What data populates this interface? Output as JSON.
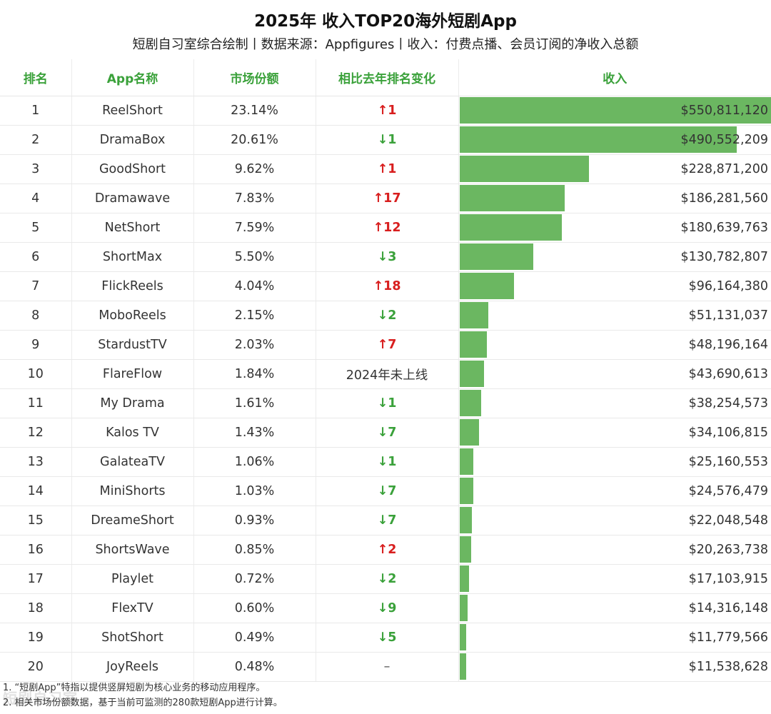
{
  "chart_data": {
    "type": "table",
    "title": "2025年 收入TOP20海外短剧App",
    "subtitle": "短剧自习室综合绘制丨数据来源：Appfigures丨收入：付费点播、会员订阅的净收入总额",
    "columns": [
      "排名",
      "App名称",
      "市场份额",
      "相比去年排名变化",
      "收入"
    ],
    "rows": [
      {
        "rank": "1",
        "app": "ReelShort",
        "share": "23.14%",
        "dir": "up",
        "change": "↑1",
        "revenue": "$550,811,120",
        "value": 550811120
      },
      {
        "rank": "2",
        "app": "DramaBox",
        "share": "20.61%",
        "dir": "down",
        "change": "↓1",
        "revenue": "$490,552,209",
        "value": 490552209
      },
      {
        "rank": "3",
        "app": "GoodShort",
        "share": "9.62%",
        "dir": "up",
        "change": "↑1",
        "revenue": "$228,871,200",
        "value": 228871200
      },
      {
        "rank": "4",
        "app": "Dramawave",
        "share": "7.83%",
        "dir": "up",
        "change": "↑17",
        "revenue": "$186,281,560",
        "value": 186281560
      },
      {
        "rank": "5",
        "app": "NetShort",
        "share": "7.59%",
        "dir": "up",
        "change": "↑12",
        "revenue": "$180,639,763",
        "value": 180639763
      },
      {
        "rank": "6",
        "app": "ShortMax",
        "share": "5.50%",
        "dir": "down",
        "change": "↓3",
        "revenue": "$130,782,807",
        "value": 130782807
      },
      {
        "rank": "7",
        "app": "FlickReels",
        "share": "4.04%",
        "dir": "up",
        "change": "↑18",
        "revenue": "$96,164,380",
        "value": 96164380
      },
      {
        "rank": "8",
        "app": "MoboReels",
        "share": "2.15%",
        "dir": "down",
        "change": "↓2",
        "revenue": "$51,131,037",
        "value": 51131037
      },
      {
        "rank": "9",
        "app": "StardustTV",
        "share": "2.03%",
        "dir": "up",
        "change": "↑7",
        "revenue": "$48,196,164",
        "value": 48196164
      },
      {
        "rank": "10",
        "app": "FlareFlow",
        "share": "1.84%",
        "dir": "note",
        "change": "2024年未上线",
        "revenue": "$43,690,613",
        "value": 43690613
      },
      {
        "rank": "11",
        "app": "My Drama",
        "share": "1.61%",
        "dir": "down",
        "change": "↓1",
        "revenue": "$38,254,573",
        "value": 38254573
      },
      {
        "rank": "12",
        "app": "Kalos TV",
        "share": "1.43%",
        "dir": "down",
        "change": "↓7",
        "revenue": "$34,106,815",
        "value": 34106815
      },
      {
        "rank": "13",
        "app": "GalateaTV",
        "share": "1.06%",
        "dir": "down",
        "change": "↓1",
        "revenue": "$25,160,553",
        "value": 25160553
      },
      {
        "rank": "14",
        "app": "MiniShorts",
        "share": "1.03%",
        "dir": "down",
        "change": "↓7",
        "revenue": "$24,576,479",
        "value": 24576479
      },
      {
        "rank": "15",
        "app": "DreameShort",
        "share": "0.93%",
        "dir": "down",
        "change": "↓7",
        "revenue": "$22,048,548",
        "value": 22048548
      },
      {
        "rank": "16",
        "app": "ShortsWave",
        "share": "0.85%",
        "dir": "up",
        "change": "↑2",
        "revenue": "$20,263,738",
        "value": 20263738
      },
      {
        "rank": "17",
        "app": "Playlet",
        "share": "0.72%",
        "dir": "down",
        "change": "↓2",
        "revenue": "$17,103,915",
        "value": 17103915
      },
      {
        "rank": "18",
        "app": "FlexTV",
        "share": "0.60%",
        "dir": "down",
        "change": "↓9",
        "revenue": "$14,316,148",
        "value": 14316148
      },
      {
        "rank": "19",
        "app": "ShotShort",
        "share": "0.49%",
        "dir": "down",
        "change": "↓5",
        "revenue": "$11,779,566",
        "value": 11779566
      },
      {
        "rank": "20",
        "app": "JoyReels",
        "share": "0.48%",
        "dir": "none",
        "change": "–",
        "revenue": "$11,538,628",
        "value": 11538628
      }
    ],
    "notes": [
      "1. “短剧App”特指以提供竖屏短剧为核心业务的移动应用程序。",
      "2. 相关市场份额数据，基于当前可监测的280款短剧App进行计算。"
    ],
    "watermark": "短剧自习室"
  },
  "colors": {
    "header": "#3aa13a",
    "up": "#d81e1e",
    "down": "#3aa13a",
    "bar": "#6bb761"
  }
}
